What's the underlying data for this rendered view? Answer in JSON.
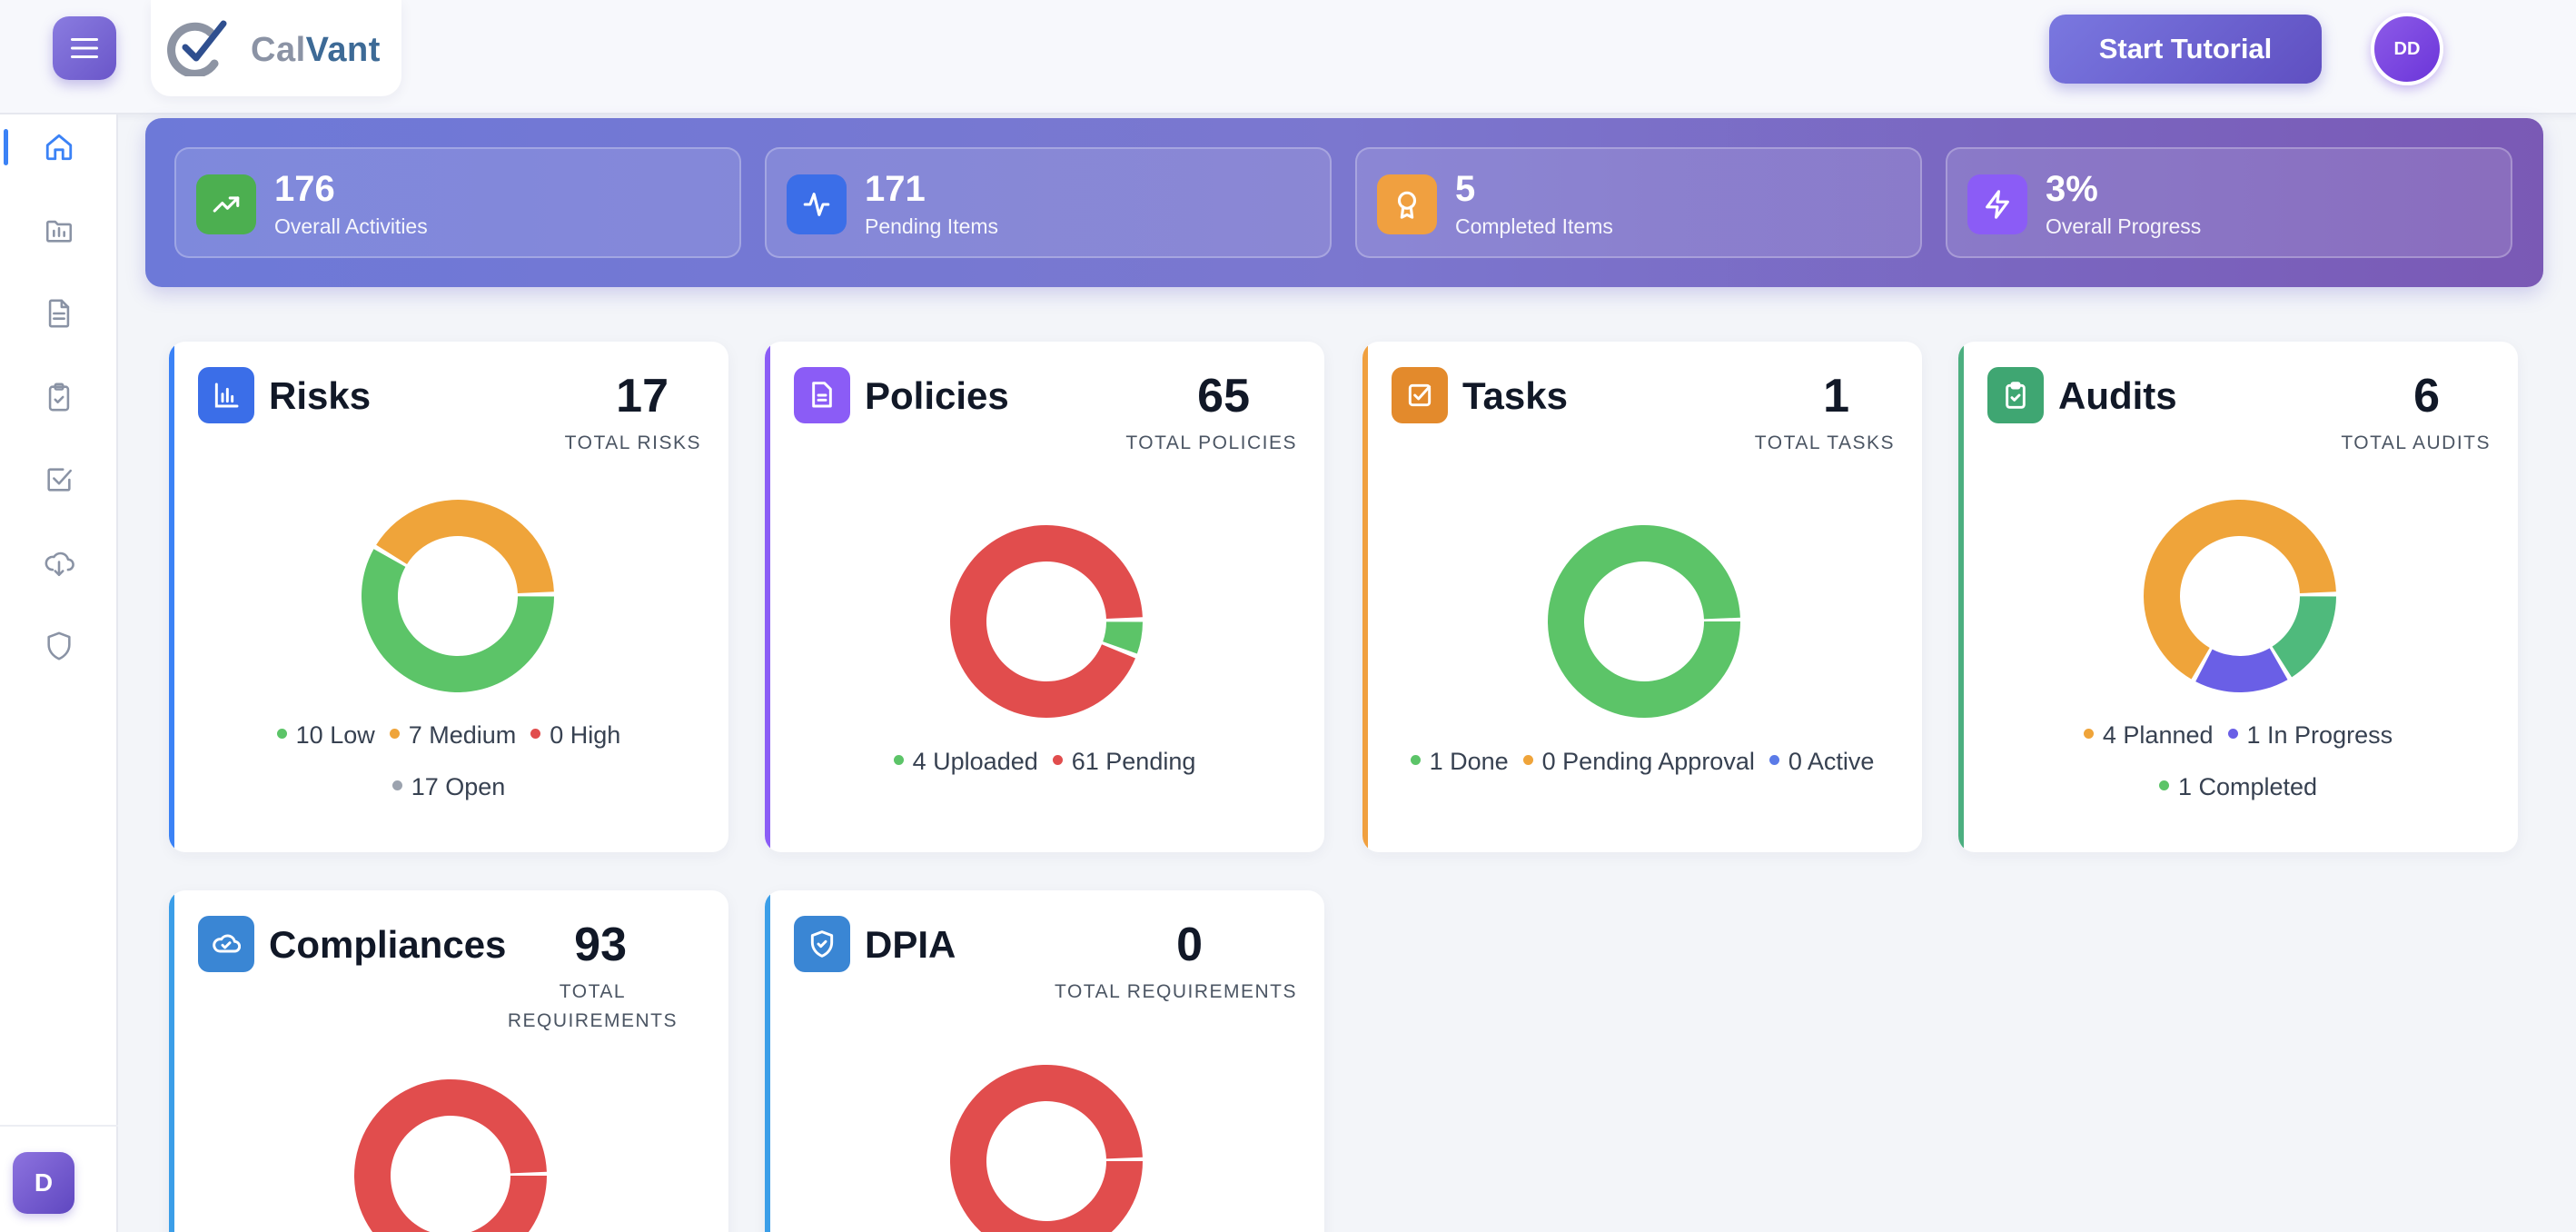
{
  "header": {
    "logo_part1": "Cal",
    "logo_part2": "Vant",
    "tutorial_label": "Start Tutorial",
    "avatar_initials": "DD"
  },
  "sidebar": {
    "items": [
      {
        "name": "home-icon",
        "active": true
      },
      {
        "name": "folder-chart-icon",
        "active": false
      },
      {
        "name": "document-icon",
        "active": false
      },
      {
        "name": "clipboard-check-icon",
        "active": false
      },
      {
        "name": "checkbox-icon",
        "active": false
      },
      {
        "name": "cloud-download-icon",
        "active": false
      },
      {
        "name": "shield-icon",
        "active": false
      }
    ],
    "user_initial": "D"
  },
  "stats": [
    {
      "value": "176",
      "label": "Overall Activities",
      "icon": "trending-up-icon",
      "color": "#4caf50"
    },
    {
      "value": "171",
      "label": "Pending Items",
      "icon": "activity-icon",
      "color": "#3b6ee8"
    },
    {
      "value": "5",
      "label": "Completed Items",
      "icon": "award-icon",
      "color": "#f0a040"
    },
    {
      "value": "3%",
      "label": "Overall Progress",
      "icon": "lightning-icon",
      "color": "#8b5cf6"
    }
  ],
  "cards": {
    "risks": {
      "title": "Risks",
      "total": "17",
      "total_label": "TOTAL RISKS",
      "accent": "#3b82f6",
      "legend": [
        "10 Low",
        "7 Medium",
        "0 High",
        "17 Open"
      ],
      "segments": [
        {
          "value": 10,
          "color": "#5cc468"
        },
        {
          "value": 7,
          "color": "#efa43a"
        }
      ]
    },
    "policies": {
      "title": "Policies",
      "total": "65",
      "total_label": "TOTAL POLICIES",
      "accent": "#8b5cf6",
      "legend": [
        "4 Uploaded",
        "61 Pending"
      ],
      "segments": [
        {
          "value": 4,
          "color": "#5cc468"
        },
        {
          "value": 61,
          "color": "#e14d4d"
        }
      ]
    },
    "tasks": {
      "title": "Tasks",
      "total": "1",
      "total_label": "TOTAL TASKS",
      "accent": "#f0a040",
      "legend": [
        "1 Done",
        "0 Pending Approval",
        "0 Active"
      ],
      "segments": [
        {
          "value": 1,
          "color": "#5cc468"
        }
      ]
    },
    "audits": {
      "title": "Audits",
      "total": "6",
      "total_label": "TOTAL AUDITS",
      "accent": "#4caf80",
      "legend": [
        "4 Planned",
        "1 In Progress",
        "1 Completed"
      ],
      "segments": [
        {
          "value": 1,
          "color": "#4fba7c"
        },
        {
          "value": 1,
          "color": "#6a5fe6"
        },
        {
          "value": 4,
          "color": "#efa43a"
        }
      ]
    },
    "compliances": {
      "title": "Compliances",
      "total": "93",
      "total_label_1": "TOTAL",
      "total_label_2": "REQUIREMENTS",
      "accent": "#3b9ee8",
      "segments": [
        {
          "value": 1,
          "color": "#e14d4d"
        }
      ]
    },
    "dpia": {
      "title": "DPIA",
      "total": "0",
      "total_label": "TOTAL REQUIREMENTS",
      "accent": "#3b9ee8",
      "segments": [
        {
          "value": 1,
          "color": "#e14d4d"
        }
      ]
    }
  },
  "colors": {
    "green": "#5cc468",
    "orange": "#efa43a",
    "red": "#e14d4d",
    "blue": "#5b7be8",
    "gray": "#9ca3af"
  }
}
